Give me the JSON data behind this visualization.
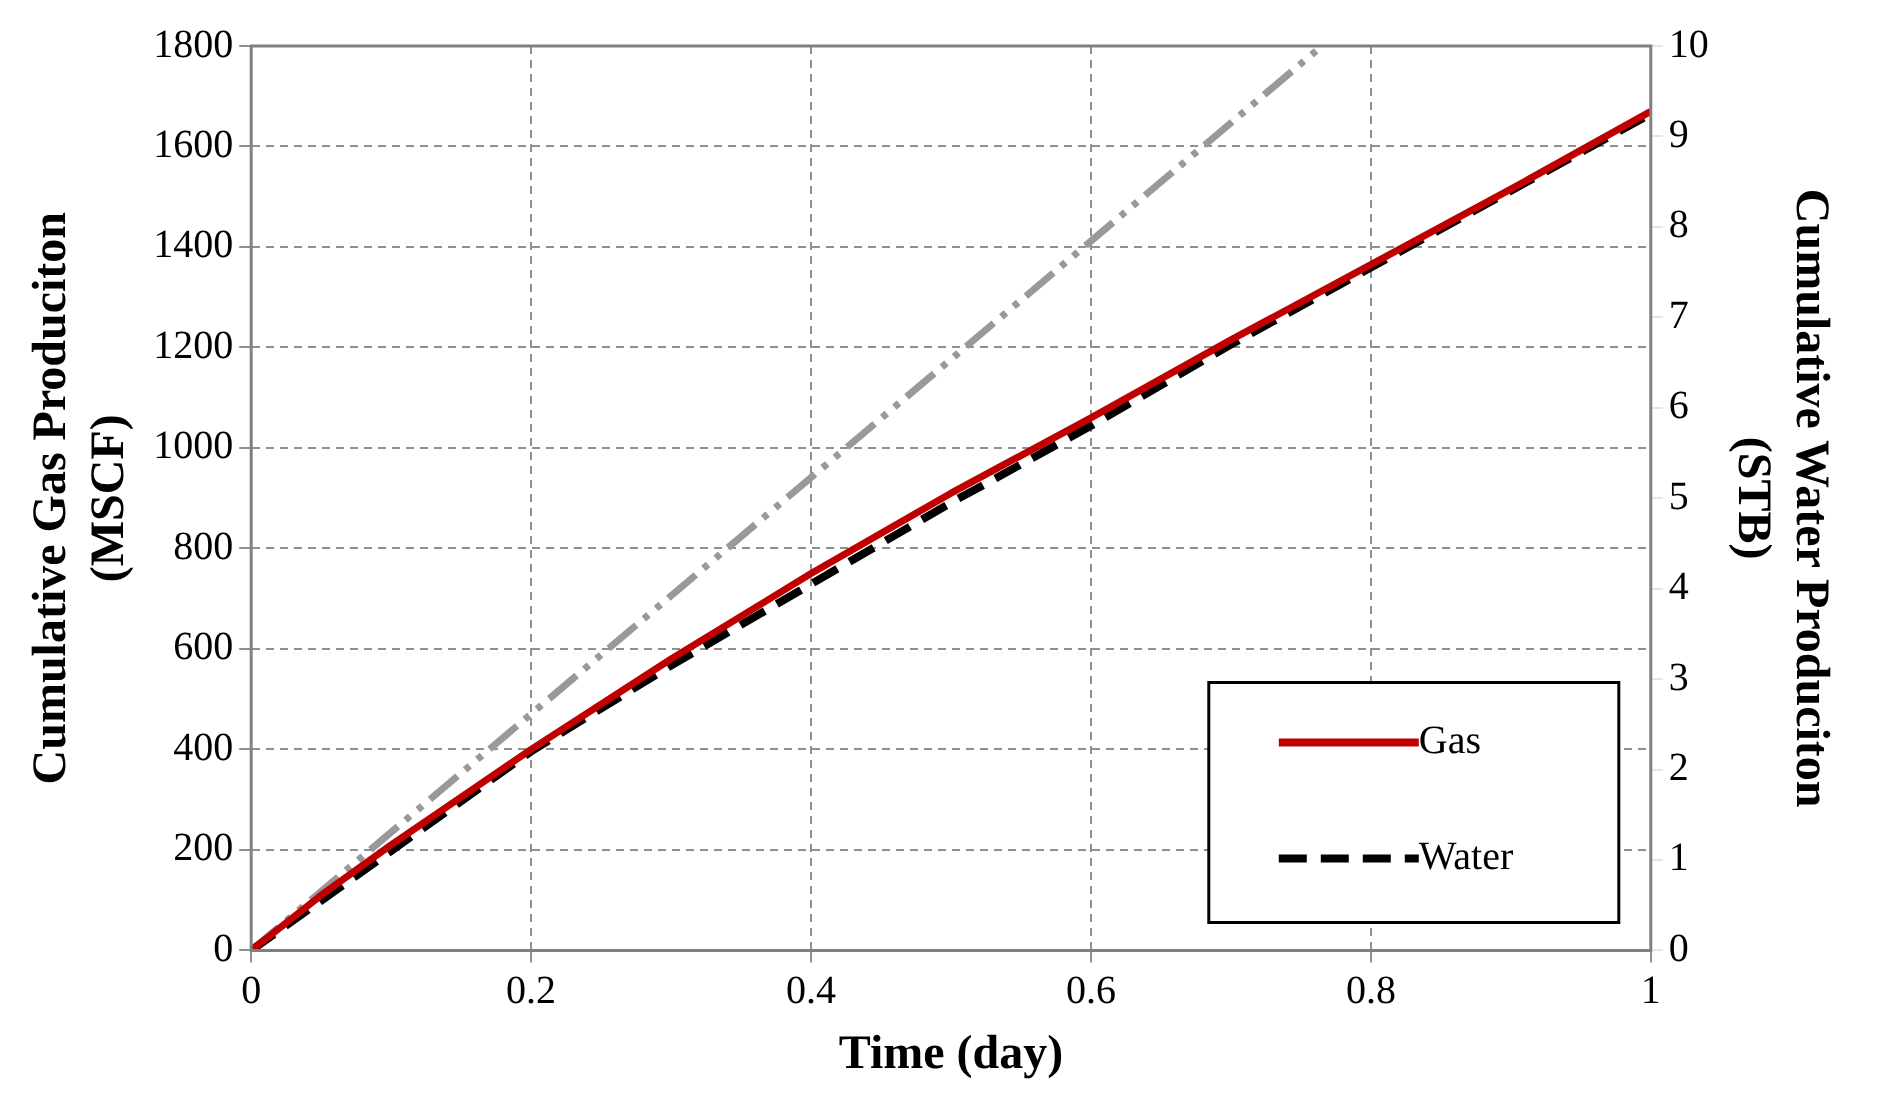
{
  "chart_data": {
    "type": "line",
    "xlabel": "Time (day)",
    "ylabel": "Cumulative Gas Produciton (MSCF)",
    "y2label": "Cumulative Water Produciton (STB)",
    "xlim": [
      0,
      1
    ],
    "xticks": [
      0,
      0.2,
      0.4,
      0.6,
      0.8,
      1
    ],
    "ylim": [
      0,
      1800
    ],
    "yticks": [
      0,
      200,
      400,
      600,
      800,
      1000,
      1200,
      1400,
      1600,
      1800
    ],
    "y2lim": [
      0,
      10
    ],
    "y2ticks": [
      0,
      1,
      2,
      3,
      4,
      5,
      6,
      7,
      8,
      9,
      10
    ],
    "grid": true,
    "legend": "bottom right",
    "marker": "none",
    "series": [
      {
        "name": "Gas",
        "color": "#c00000",
        "line_style": "solid",
        "x": [
          0,
          0.05,
          0.1,
          0.2,
          0.3,
          0.4,
          0.5,
          0.6,
          0.7,
          0.8,
          0.9,
          1
        ],
        "values": [
          0,
          110,
          210,
          400,
          580,
          750,
          910,
          1060,
          1215,
          1365,
          1515,
          1670
        ]
      },
      {
        "name": "Water",
        "color": "#000000",
        "line_style": "dashed",
        "axis": "y2",
        "x": [
          0,
          0.05,
          0.1,
          0.2,
          0.3,
          0.4,
          0.5,
          0.6,
          0.7,
          0.8,
          0.9,
          1
        ],
        "values": [
          0,
          0.55,
          1.1,
          2.2,
          3.15,
          4.05,
          4.95,
          5.8,
          6.7,
          7.55,
          8.4,
          9.25
        ]
      },
      {
        "color": "#999999",
        "line_style": "dotted",
        "x": [
          0,
          0.765
        ],
        "values": [
          0,
          1800
        ]
      }
    ]
  }
}
